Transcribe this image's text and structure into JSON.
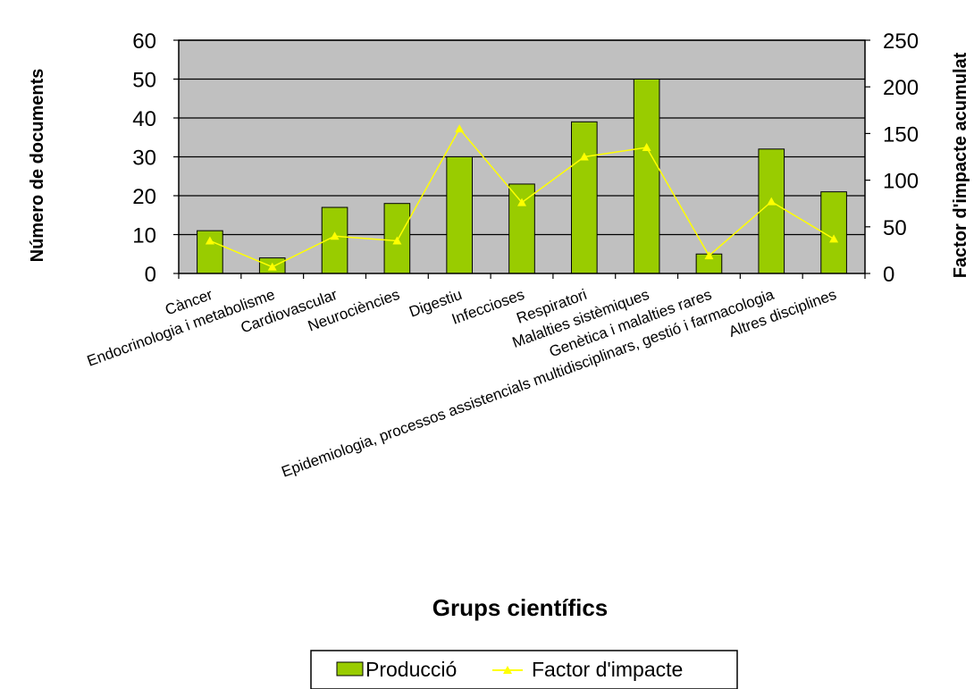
{
  "chart_data": {
    "type": "bar",
    "xlabel": "Grups científics",
    "ylabel": "Número de documents",
    "ylabel_right": "Factor d'impacte acumulat",
    "ylim": [
      0,
      60
    ],
    "ylim_right": [
      0,
      250
    ],
    "yticks": [
      "0",
      "10",
      "20",
      "30",
      "40",
      "50",
      "60"
    ],
    "yticks_right": [
      "0",
      "50",
      "100",
      "150",
      "200",
      "250"
    ],
    "grid": true,
    "legend_position": "bottom",
    "categories": [
      "Càncer",
      "Endocrinologia i metabolisme",
      "Cardiovascular",
      "Neurociències",
      "Digestiu",
      "Infeccioses",
      "Respiratori",
      "Malalties sistèmiques",
      "Genètica i malalties rares",
      "Epidemiologia, processos assistencials multidisciplinars, gestió i farmacologia",
      "Altres disciplines"
    ],
    "series": [
      {
        "name": "Producció",
        "type": "bar",
        "axis": "left",
        "color": "#99cc00",
        "values": [
          11,
          4,
          17,
          18,
          30,
          23,
          39,
          50,
          5,
          32,
          21
        ]
      },
      {
        "name": "Factor d'impacte",
        "type": "line",
        "axis": "right",
        "color": "#ffff00",
        "values": [
          35,
          7,
          40,
          35,
          155,
          76,
          125,
          135,
          19,
          77,
          37
        ]
      }
    ],
    "colors": {
      "plot_background": "#c0c0c0",
      "bar_fill": "#99cc00",
      "line": "#ffff00"
    }
  }
}
